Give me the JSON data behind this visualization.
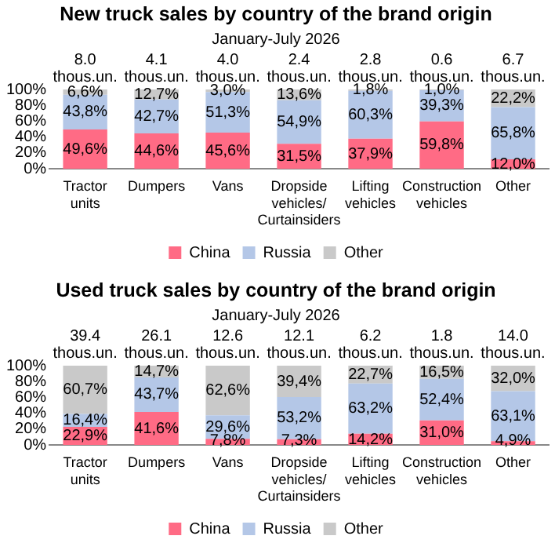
{
  "chart_data": [
    {
      "type": "bar",
      "stacked": true,
      "title": "New truck sales by country of the brand origin",
      "subtitle": "January-July 2026",
      "categories": [
        "Tractor units",
        "Dumpers",
        "Vans",
        "Dropside vehicles/ Curtainsiders",
        "Lifting vehicles",
        "Construction vehicles",
        "Other"
      ],
      "annotations": [
        "8.0 thous.un.",
        "4.1 thous.un.",
        "4.0 thous.un.",
        "2.4 thous.un.",
        "2.8 thous.un.",
        "0.6 thous.un.",
        "6.7 thous.un."
      ],
      "series": [
        {
          "name": "China",
          "color": "#ff6b85",
          "values": [
            49.6,
            44.6,
            45.6,
            31.5,
            37.9,
            59.8,
            12.0
          ],
          "value_labels": [
            "49,6%",
            "44,6%",
            "45,6%",
            "31,5%",
            "37,9%",
            "59,8%",
            "12,0%"
          ]
        },
        {
          "name": "Russia",
          "color": "#b4c7e7",
          "values": [
            43.8,
            42.7,
            51.3,
            54.9,
            60.3,
            39.3,
            65.8
          ],
          "value_labels": [
            "43,8%",
            "42,7%",
            "51,3%",
            "54,9%",
            "60,3%",
            "39,3%",
            "65,8%"
          ]
        },
        {
          "name": "Other",
          "color": "#c9c9c9",
          "values": [
            6.6,
            12.7,
            3.0,
            13.6,
            1.8,
            1.0,
            22.2
          ],
          "value_labels": [
            "6,6%",
            "12,7%",
            "3,0%",
            "13,6%",
            "1,8%",
            "1,0%",
            "22,2%"
          ]
        }
      ],
      "ylim": [
        0,
        100
      ],
      "yticks": [
        {
          "value": 0,
          "label": "0%"
        },
        {
          "value": 20,
          "label": "20%"
        },
        {
          "value": 40,
          "label": "40%"
        },
        {
          "value": 60,
          "label": "60%"
        },
        {
          "value": 80,
          "label": "80%"
        },
        {
          "value": 100,
          "label": "100%"
        }
      ],
      "grid": false,
      "legend": "bottom"
    },
    {
      "type": "bar",
      "stacked": true,
      "title": "Used truck sales by country of the brand origin",
      "subtitle": "January-July 2026",
      "categories": [
        "Tractor units",
        "Dumpers",
        "Vans",
        "Dropside vehicles/ Curtainsiders",
        "Lifting vehicles",
        "Construction vehicles",
        "Other"
      ],
      "annotations": [
        "39.4 thous.un.",
        "26.1 thous.un.",
        "12.6 thous.un.",
        "12.1 thous.un.",
        "6.2 thous.un.",
        "1.8 thous.un.",
        "14.0 thous.un."
      ],
      "series": [
        {
          "name": "China",
          "color": "#ff6b85",
          "values": [
            22.9,
            41.6,
            7.8,
            7.3,
            14.2,
            31.0,
            4.9
          ],
          "value_labels": [
            "22,9%",
            "41,6%",
            "7,8%",
            "7,3%",
            "14,2%",
            "31,0%",
            "4,9%"
          ]
        },
        {
          "name": "Russia",
          "color": "#b4c7e7",
          "values": [
            16.4,
            43.7,
            29.6,
            53.2,
            63.2,
            52.4,
            63.1
          ],
          "value_labels": [
            "16,4%",
            "43,7%",
            "29,6%",
            "53,2%",
            "63,2%",
            "52,4%",
            "63,1%"
          ]
        },
        {
          "name": "Other",
          "color": "#c9c9c9",
          "values": [
            60.7,
            14.7,
            62.6,
            39.4,
            22.7,
            16.5,
            32.0
          ],
          "value_labels": [
            "60,7%",
            "14,7%",
            "62,6%",
            "39,4%",
            "22,7%",
            "16,5%",
            "32,0%"
          ]
        }
      ],
      "ylim": [
        0,
        100
      ],
      "yticks": [
        {
          "value": 0,
          "label": "0%"
        },
        {
          "value": 20,
          "label": "20%"
        },
        {
          "value": 40,
          "label": "40%"
        },
        {
          "value": 60,
          "label": "60%"
        },
        {
          "value": 80,
          "label": "80%"
        },
        {
          "value": 100,
          "label": "100%"
        }
      ],
      "grid": false,
      "legend": "bottom"
    }
  ]
}
